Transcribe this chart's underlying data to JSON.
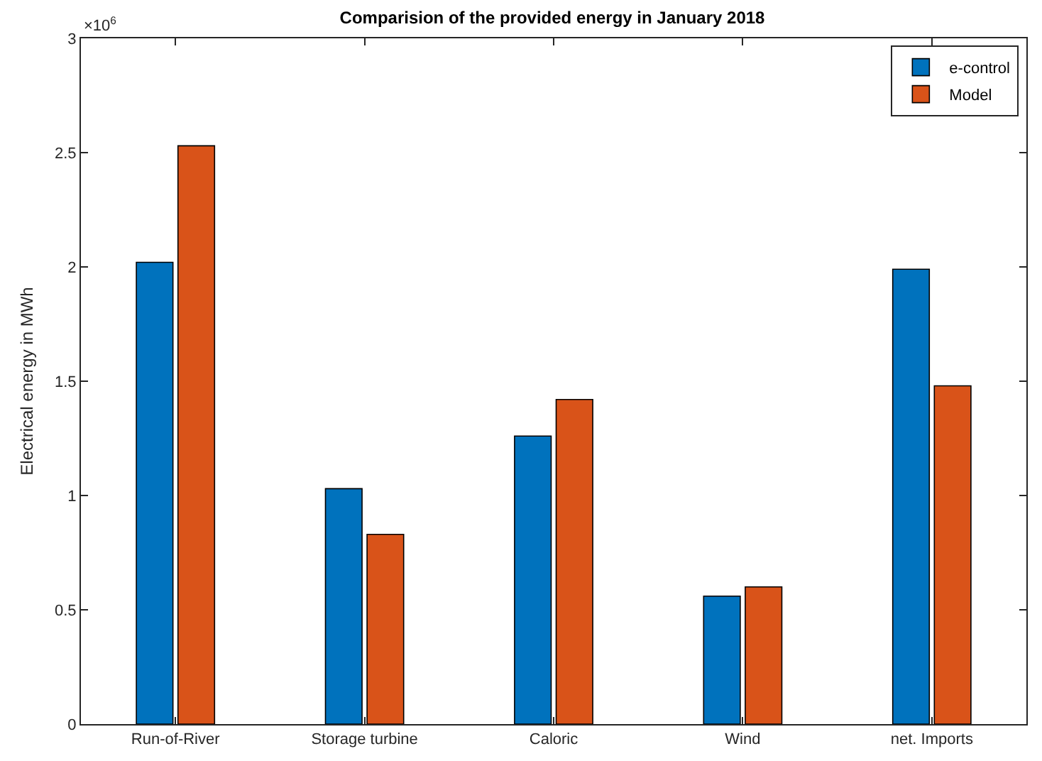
{
  "chart_data": {
    "type": "bar",
    "title": "Comparision of the provided energy in January 2018",
    "ylabel": "Electrical energy in MWh",
    "categories": [
      "Run-of-River",
      "Storage turbine",
      "Caloric",
      "Wind",
      "net. Imports"
    ],
    "series": [
      {
        "name": "e-control",
        "color": "#0072bd",
        "values": [
          2.02,
          1.03,
          1.26,
          0.56,
          1.99
        ]
      },
      {
        "name": "Model",
        "color": "#d95319",
        "values": [
          2.53,
          0.83,
          1.42,
          0.6,
          1.48
        ]
      }
    ],
    "ylim": [
      0,
      3
    ],
    "yticks": [
      0,
      0.5,
      1,
      1.5,
      2,
      2.5,
      3
    ],
    "annotations": [
      "×10$^{6}$"
    ],
    "grid": false,
    "legend": "top right"
  }
}
